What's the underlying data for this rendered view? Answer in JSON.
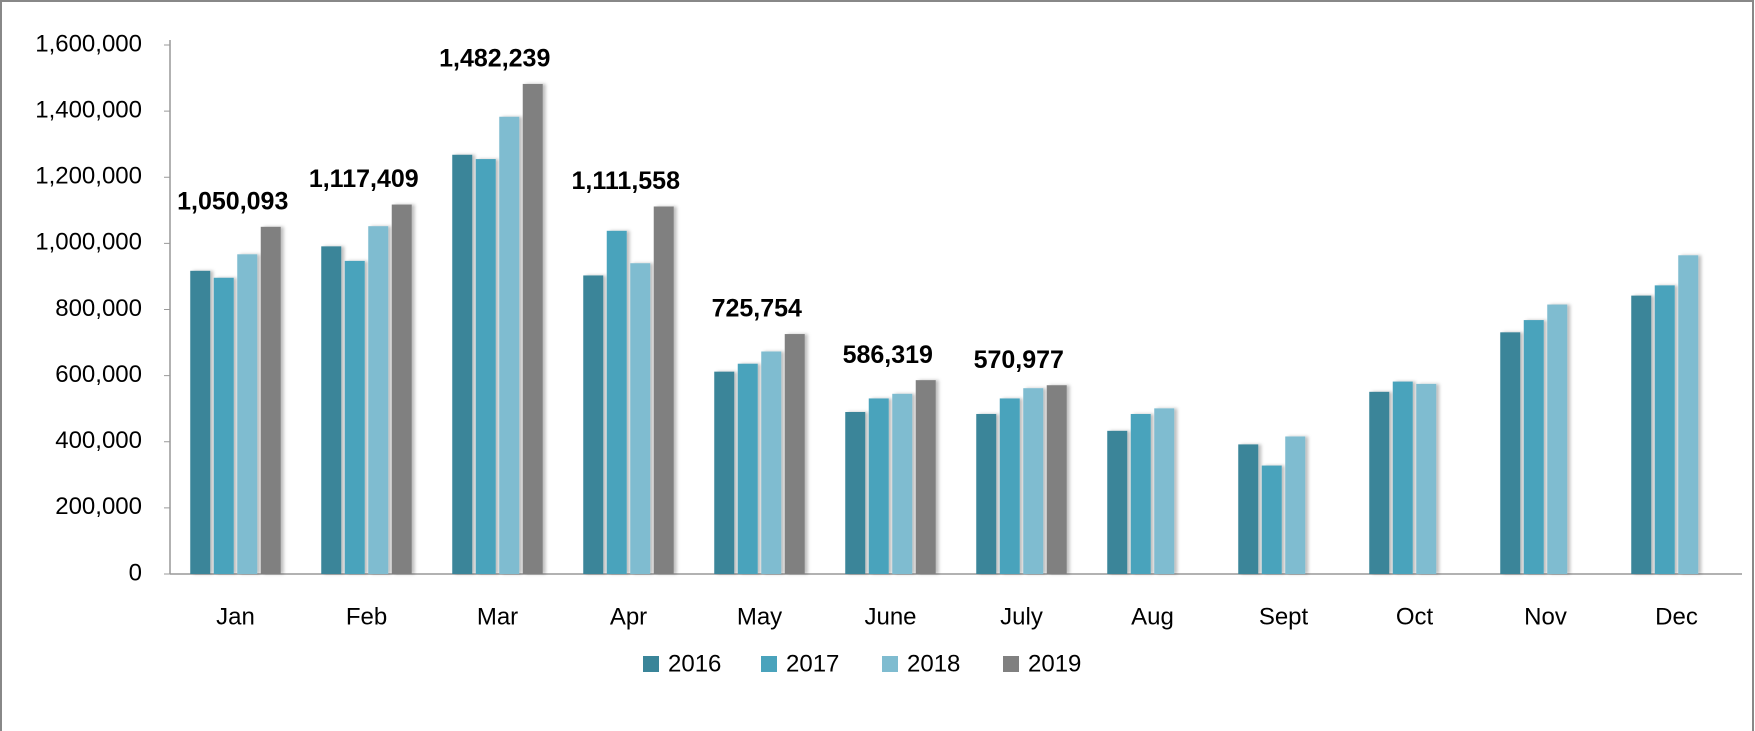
{
  "chart_data": {
    "type": "bar",
    "categories": [
      "Jan",
      "Feb",
      "Mar",
      "Apr",
      "May",
      "June",
      "July",
      "Aug",
      "Sept",
      "Oct",
      "Nov",
      "Dec"
    ],
    "series": [
      {
        "name": "2016",
        "color": "#3a8599",
        "values": [
          917000,
          991000,
          1268000,
          903000,
          612000,
          490000,
          484000,
          433000,
          392000,
          551000,
          731000,
          842000
        ]
      },
      {
        "name": "2017",
        "color": "#4aa3bc",
        "values": [
          896000,
          947000,
          1255000,
          1038000,
          636000,
          531000,
          531000,
          484000,
          328000,
          582000,
          768000,
          873000
        ]
      },
      {
        "name": "2018",
        "color": "#7fbcd0",
        "values": [
          967000,
          1052000,
          1383000,
          940000,
          673000,
          545000,
          562000,
          501000,
          416000,
          575000,
          815000,
          964000
        ]
      },
      {
        "name": "2019",
        "color": "#808080",
        "values": [
          1050093,
          1117409,
          1482239,
          1111558,
          725754,
          586319,
          570977,
          null,
          null,
          null,
          null,
          null
        ],
        "value_labels": [
          "1,050,093",
          "1,117,409",
          "1,482,239",
          "1,111,558",
          "725,754",
          "586,319",
          "570,977",
          null,
          null,
          null,
          null,
          null
        ]
      }
    ],
    "ylim": [
      0,
      1600000
    ],
    "yticks": [
      0,
      {
        "value": 200000,
        "label": "200,000"
      },
      {
        "value": 400000,
        "label": "400,000"
      },
      {
        "value": 600000,
        "label": "600,000"
      },
      {
        "value": 800000,
        "label": "800,000"
      },
      {
        "value": 1000000,
        "label": "1,000,000"
      },
      {
        "value": 1200000,
        "label": "1,200,000"
      },
      {
        "value": 1400000,
        "label": "1,400,000"
      },
      {
        "value": 1600000,
        "label": "1,600,000"
      }
    ],
    "legend": "bottom"
  }
}
